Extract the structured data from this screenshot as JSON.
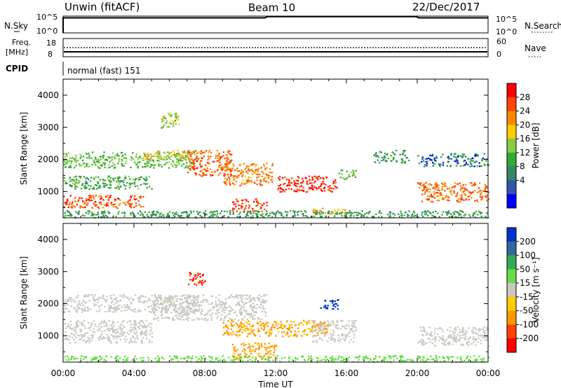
{
  "header": {
    "station": "Unwin (fitACF)",
    "beam": "Beam 10",
    "date": "22/Dec/2017"
  },
  "nsky_panel": {
    "label": "N.Sky",
    "left_ticks": [
      "10^5",
      "10^0"
    ],
    "right_ticks": [
      "10^5",
      "10^0"
    ],
    "right_label": "N.Search"
  },
  "freq_panel": {
    "label_top": "Freq.",
    "label_unit": "[MHz]",
    "left_ticks": [
      "18",
      "8"
    ],
    "right_ticks": [
      "60",
      "0"
    ],
    "right_label": "Nave"
  },
  "cpid_panel": {
    "label": "CPID",
    "program": "normal (fast) 151"
  },
  "chart_data": [
    {
      "type": "heatmap",
      "ylabel": "Slant Range [km]",
      "xlabel": "Time UT",
      "ylim": [
        180,
        4500
      ],
      "xlim": [
        0,
        24
      ],
      "x_ticks": [
        "00:00",
        "04:00",
        "08:00",
        "12:00",
        "16:00",
        "20:00",
        "00:00"
      ],
      "y_ticks": [
        1000,
        2000,
        3000,
        4000
      ],
      "colorbar": {
        "label": "Power [dB]",
        "ticks": [
          "28",
          "24",
          "20",
          "16",
          "12",
          "8",
          "4"
        ],
        "colors": [
          "#ff0000",
          "#ff4400",
          "#ff8800",
          "#ffcc00",
          "#88cc44",
          "#33aa33",
          "#338866",
          "#3355aa",
          "#0000ff"
        ]
      },
      "regions": [
        {
          "t0": 0.0,
          "t1": 7.3,
          "r0": 1750,
          "r1": 2250,
          "value": 12
        },
        {
          "t0": 0.0,
          "t1": 5.0,
          "r0": 1100,
          "r1": 1500,
          "value": 10
        },
        {
          "t0": 0.0,
          "t1": 4.5,
          "r0": 500,
          "r1": 900,
          "value": 26
        },
        {
          "t0": 4.5,
          "t1": 7.8,
          "r0": 2000,
          "r1": 2300,
          "value": 18
        },
        {
          "t0": 7.0,
          "t1": 9.5,
          "r0": 1500,
          "r1": 2300,
          "value": 25
        },
        {
          "t0": 9.0,
          "t1": 11.8,
          "r0": 1200,
          "r1": 1900,
          "value": 23
        },
        {
          "t0": 9.5,
          "t1": 11.5,
          "r0": 400,
          "r1": 800,
          "value": 27
        },
        {
          "t0": 12.0,
          "t1": 15.5,
          "r0": 1000,
          "r1": 1500,
          "value": 28
        },
        {
          "t0": 14.0,
          "t1": 16.0,
          "r0": 300,
          "r1": 500,
          "value": 20
        },
        {
          "t0": 15.5,
          "t1": 16.5,
          "r0": 1400,
          "r1": 1700,
          "value": 12
        },
        {
          "t0": 17.5,
          "t1": 19.5,
          "r0": 1900,
          "r1": 2300,
          "value": 8
        },
        {
          "t0": 20.0,
          "t1": 24.0,
          "r0": 700,
          "r1": 1300,
          "value": 24
        },
        {
          "t0": 20.0,
          "t1": 24.0,
          "r0": 1800,
          "r1": 2200,
          "value": 6
        },
        {
          "t0": 5.5,
          "t1": 6.5,
          "r0": 3000,
          "r1": 3500,
          "value": 14
        },
        {
          "t0": 0.0,
          "t1": 24.0,
          "r0": 200,
          "r1": 420,
          "value": 8
        }
      ]
    },
    {
      "type": "heatmap",
      "ylabel": "Slant Range [km]",
      "xlabel": "Time UT",
      "ylim": [
        180,
        4500
      ],
      "xlim": [
        0,
        24
      ],
      "x_ticks": [
        "00:00",
        "04:00",
        "08:00",
        "12:00",
        "16:00",
        "20:00",
        "00:00"
      ],
      "y_ticks": [
        1000,
        2000,
        3000,
        4000
      ],
      "colorbar": {
        "label": "Velocity [m s⁻¹]",
        "ticks": [
          "200",
          "100",
          "50",
          "15",
          "-15",
          "-50",
          "-100",
          "-200"
        ],
        "colors": [
          "#0033cc",
          "#336699",
          "#33aa55",
          "#66dd44",
          "#c8c8c0",
          "#ffcc00",
          "#ff9900",
          "#ff4400",
          "#ff0000"
        ]
      },
      "regions": [
        {
          "t0": 0.0,
          "t1": 7.5,
          "r0": 1750,
          "r1": 2300,
          "value": 0
        },
        {
          "t0": 0.0,
          "t1": 5.0,
          "r0": 800,
          "r1": 1500,
          "value": 0
        },
        {
          "t0": 5.0,
          "t1": 11.5,
          "r0": 1500,
          "r1": 2300,
          "value": 0
        },
        {
          "t0": 9.0,
          "t1": 15.0,
          "r0": 1000,
          "r1": 1500,
          "value": -60
        },
        {
          "t0": 9.5,
          "t1": 12.0,
          "r0": 300,
          "r1": 800,
          "value": -60
        },
        {
          "t0": 14.0,
          "t1": 16.5,
          "r0": 800,
          "r1": 1500,
          "value": 0
        },
        {
          "t0": 14.5,
          "t1": 15.5,
          "r0": 1850,
          "r1": 2150,
          "value": 220
        },
        {
          "t0": 20.0,
          "t1": 24.0,
          "r0": 700,
          "r1": 1300,
          "value": 0
        },
        {
          "t0": 7.0,
          "t1": 8.0,
          "r0": 2600,
          "r1": 3000,
          "value": -200
        },
        {
          "t0": 0.0,
          "t1": 24.0,
          "r0": 200,
          "r1": 400,
          "value": 30
        }
      ]
    }
  ]
}
